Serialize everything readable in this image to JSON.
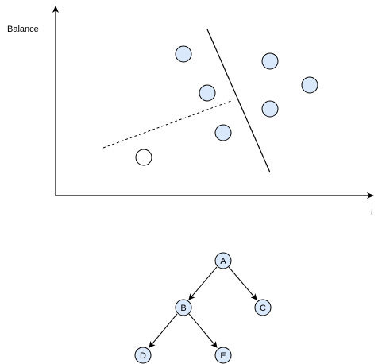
{
  "scatter": {
    "y_axis_label": "Balance",
    "x_axis_label": "t",
    "filled_point_color": "#dae8fc",
    "filled_point_stroke": "#000000",
    "unfilled_point_color": "#ffffff",
    "points": [
      {
        "name": "scatter-point-1",
        "filled": true
      },
      {
        "name": "scatter-point-2",
        "filled": true
      },
      {
        "name": "scatter-point-3",
        "filled": true
      },
      {
        "name": "scatter-point-4",
        "filled": true
      },
      {
        "name": "scatter-point-5",
        "filled": true
      },
      {
        "name": "scatter-point-6",
        "filled": true
      },
      {
        "name": "scatter-point-7",
        "filled": false
      }
    ]
  },
  "tree": {
    "node_fill": "#dae8fc",
    "node_stroke": "#000000",
    "nodes": {
      "a": "A",
      "b": "B",
      "c": "C",
      "d": "D",
      "e": "E"
    },
    "edges": [
      [
        "A",
        "B"
      ],
      [
        "A",
        "C"
      ],
      [
        "B",
        "D"
      ],
      [
        "B",
        "E"
      ]
    ]
  }
}
